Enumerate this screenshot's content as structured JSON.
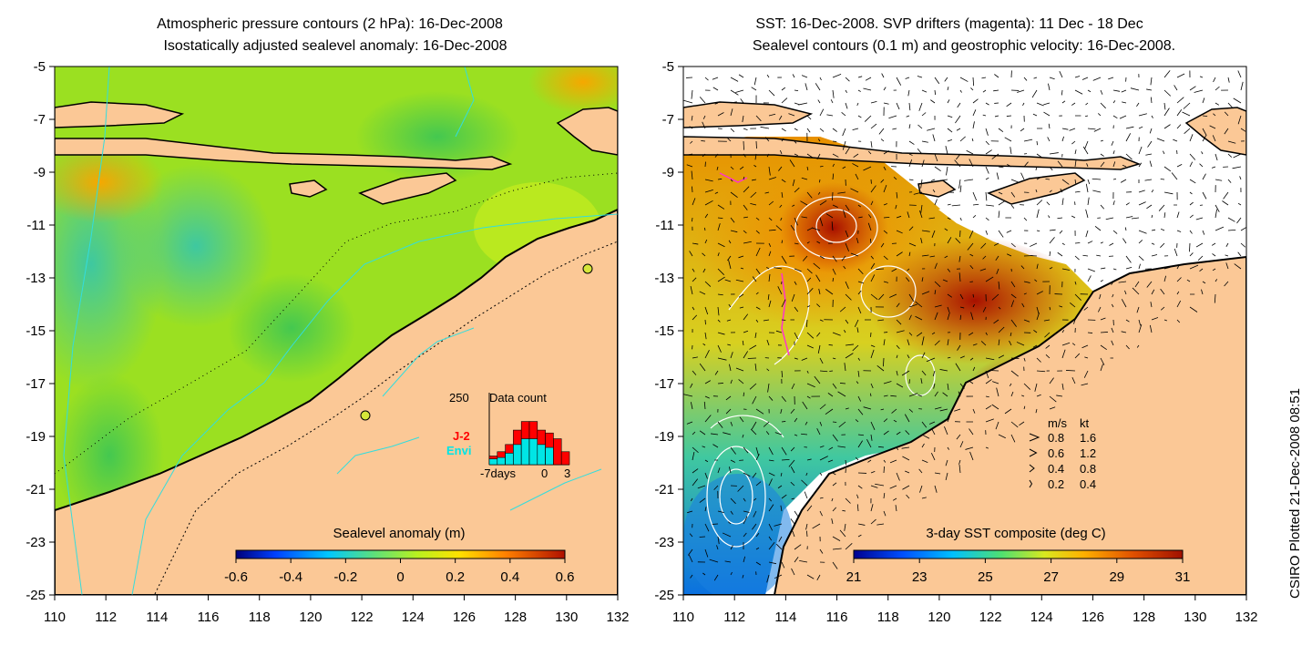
{
  "left_panel": {
    "title_line1": "Atmospheric pressure contours (2 hPa): 16-Dec-2008",
    "title_line2": "Isostatically adjusted sealevel anomaly: 16-Dec-2008",
    "colorbar_label": "Sealevel anomaly (m)",
    "colorbar_ticks": [
      "-0.6",
      "-0.4",
      "-0.2",
      "0",
      "0.2",
      "0.4",
      "0.6"
    ],
    "colorbar_range": [
      -0.6,
      0.6
    ],
    "inset": {
      "max_label": "250",
      "title": "Data count",
      "series_labels": [
        "J-2",
        "Envi"
      ],
      "series_colors": [
        "#ff0000",
        "#00e5e5"
      ],
      "x_ticks": [
        "-7days",
        "0",
        "3"
      ],
      "histogram": {
        "days": [
          -7,
          -6,
          -5,
          -4,
          -3,
          -2,
          -1,
          0,
          1,
          2
        ],
        "j2": [
          30,
          45,
          70,
          120,
          150,
          150,
          120,
          110,
          90,
          45
        ],
        "envi": [
          20,
          25,
          40,
          70,
          90,
          90,
          70,
          60,
          0,
          0
        ]
      }
    }
  },
  "right_panel": {
    "title_line1": "SST: 16-Dec-2008. SVP drifters (magenta): 11 Dec - 18 Dec",
    "title_line2": "Sealevel contours (0.1 m) and geostrophic velocity: 16-Dec-2008.",
    "colorbar_label": "3-day SST composite (deg C)",
    "colorbar_ticks": [
      "21",
      "23",
      "25",
      "27",
      "29",
      "31"
    ],
    "colorbar_range": [
      21,
      31
    ],
    "velocity_legend": {
      "header_ms": "m/s",
      "header_kt": "kt",
      "rows": [
        {
          "ms": "0.8",
          "kt": "1.6"
        },
        {
          "ms": "0.6",
          "kt": "1.2"
        },
        {
          "ms": "0.4",
          "kt": "0.8"
        },
        {
          "ms": "0.2",
          "kt": "0.4"
        }
      ]
    }
  },
  "axes": {
    "y_ticks": [
      "-5",
      "-7",
      "-9",
      "-11",
      "-13",
      "-15",
      "-17",
      "-19",
      "-21",
      "-23",
      "-25"
    ],
    "x_ticks": [
      "110",
      "112",
      "114",
      "116",
      "118",
      "120",
      "122",
      "124",
      "126",
      "128",
      "130",
      "132"
    ],
    "lon_range": [
      110,
      132
    ],
    "lat_range": [
      -25,
      -5
    ]
  },
  "credit": "CSIRO Plotted 21-Dec-2008 08:51",
  "colors": {
    "land": "#fbc896",
    "coast": "#000000",
    "sla_base": "#9be021",
    "sst_warm": "#b82200",
    "sst_cool": "#0a8cd8",
    "bathymetry": "#33dddd"
  }
}
